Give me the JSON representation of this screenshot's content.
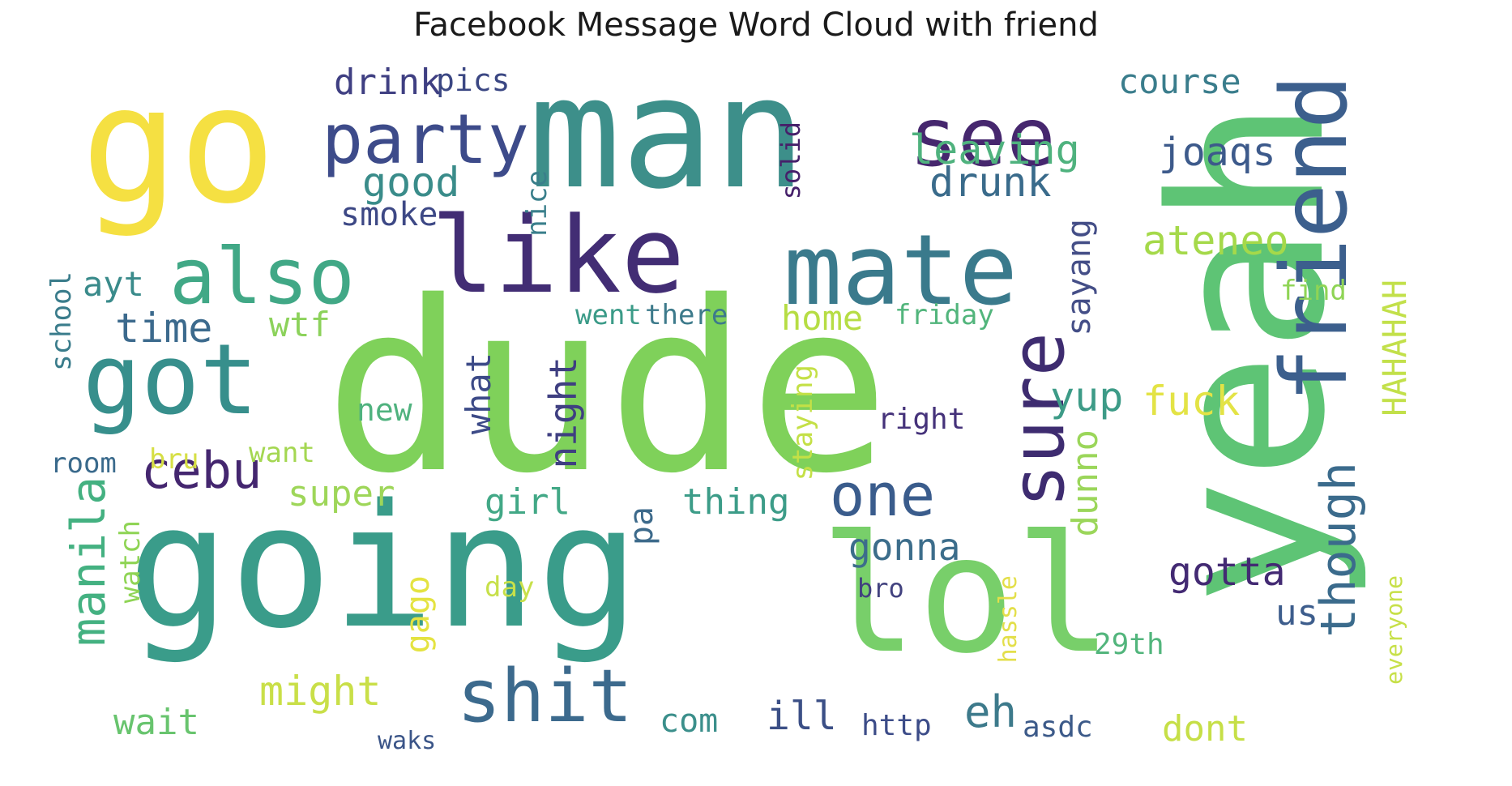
{
  "title": "Facebook Message Word Cloud with friend",
  "words": [
    {
      "text": "go",
      "color": "#f5e042"
    },
    {
      "text": "man",
      "color": "#3d8f8a"
    },
    {
      "text": "see",
      "color": "#46276e"
    },
    {
      "text": "yeah",
      "color": "#5ec475"
    },
    {
      "text": "friend",
      "color": "#3c5f8d"
    },
    {
      "text": "party",
      "color": "#3d4b8a"
    },
    {
      "text": "dude",
      "color": "#7fd15a"
    },
    {
      "text": "going",
      "color": "#3a9c8a"
    },
    {
      "text": "lol",
      "color": "#78cf6a"
    },
    {
      "text": "like",
      "color": "#422d74"
    },
    {
      "text": "mate",
      "color": "#3a7a8c"
    },
    {
      "text": "also",
      "color": "#41a886"
    },
    {
      "text": "got",
      "color": "#378f8c"
    },
    {
      "text": "sure",
      "color": "#3e2c70"
    },
    {
      "text": "shit",
      "color": "#3c6a8d"
    },
    {
      "text": "cebu",
      "color": "#44266f"
    },
    {
      "text": "one",
      "color": "#3a5c8c"
    },
    {
      "text": "though",
      "color": "#3b6b8c"
    },
    {
      "text": "manila",
      "color": "#44b181"
    },
    {
      "text": "drink",
      "color": "#3f3f82"
    },
    {
      "text": "pics",
      "color": "#3b4783"
    },
    {
      "text": "course",
      "color": "#3a7d8c"
    },
    {
      "text": "leaving",
      "color": "#4fb27e"
    },
    {
      "text": "joaqs",
      "color": "#3d5a8b"
    },
    {
      "text": "good",
      "color": "#3a8c8a"
    },
    {
      "text": "drunk",
      "color": "#3a6b8b"
    },
    {
      "text": "smoke",
      "color": "#3d4885"
    },
    {
      "text": "nice",
      "color": "#3a7f8b"
    },
    {
      "text": "solid",
      "color": "#46206a"
    },
    {
      "text": "ateneo",
      "color": "#a5d94a"
    },
    {
      "text": "sayang",
      "color": "#444e87"
    },
    {
      "text": "find",
      "color": "#8fd455"
    },
    {
      "text": "ayt",
      "color": "#3a8b8b"
    },
    {
      "text": "time",
      "color": "#3c6a8d"
    },
    {
      "text": "wtf",
      "color": "#8cd25b"
    },
    {
      "text": "went",
      "color": "#3b9b88"
    },
    {
      "text": "there",
      "color": "#3d7a8b"
    },
    {
      "text": "home",
      "color": "#b6dd44"
    },
    {
      "text": "friday",
      "color": "#52b57c"
    },
    {
      "text": "school",
      "color": "#3a7c8b"
    },
    {
      "text": "what",
      "color": "#3c4a87"
    },
    {
      "text": "night",
      "color": "#3f3f81"
    },
    {
      "text": "staying",
      "color": "#c4e046"
    },
    {
      "text": "yup",
      "color": "#3d9b87"
    },
    {
      "text": "fuck",
      "color": "#e3e345"
    },
    {
      "text": "HAHAHAH",
      "color": "#c2e04a"
    },
    {
      "text": "new",
      "color": "#4fb27e"
    },
    {
      "text": "right",
      "color": "#45327a"
    },
    {
      "text": "room",
      "color": "#3a6a8c"
    },
    {
      "text": "bru",
      "color": "#d6df45"
    },
    {
      "text": "want",
      "color": "#a4d752"
    },
    {
      "text": "dunno",
      "color": "#9bd65a"
    },
    {
      "text": "super",
      "color": "#9ed659"
    },
    {
      "text": "girl",
      "color": "#42a886"
    },
    {
      "text": "pa",
      "color": "#3d6a8b"
    },
    {
      "text": "thing",
      "color": "#3c9c88"
    },
    {
      "text": "watch",
      "color": "#8fd455"
    },
    {
      "text": "gonna",
      "color": "#3c6d8b"
    },
    {
      "text": "gotta",
      "color": "#432a73"
    },
    {
      "text": "gago",
      "color": "#e4e341"
    },
    {
      "text": "day",
      "color": "#c7e04a"
    },
    {
      "text": "bro",
      "color": "#42427f"
    },
    {
      "text": "us",
      "color": "#3d5d8c"
    },
    {
      "text": "hassle",
      "color": "#e3df4a"
    },
    {
      "text": "everyone",
      "color": "#c7e049"
    },
    {
      "text": "might",
      "color": "#c9df48"
    },
    {
      "text": "29th",
      "color": "#52b57c"
    },
    {
      "text": "wait",
      "color": "#68c46e"
    },
    {
      "text": "com",
      "color": "#3b8f8b"
    },
    {
      "text": "ill",
      "color": "#3b4f86"
    },
    {
      "text": "http",
      "color": "#3c4c88"
    },
    {
      "text": "eh",
      "color": "#3d7a8b"
    },
    {
      "text": "asdc",
      "color": "#3c5a89"
    },
    {
      "text": "dont",
      "color": "#c6df47"
    },
    {
      "text": "waks",
      "color": "#3b5588"
    }
  ]
}
